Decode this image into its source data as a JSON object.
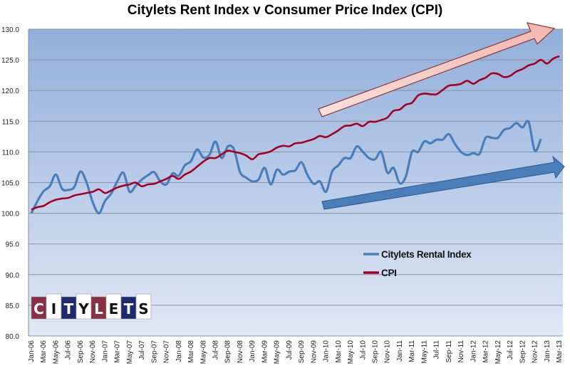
{
  "chart_data": {
    "type": "line",
    "title": "Citylets Rent Index v Consumer Price Index (CPI)",
    "xlabel": "",
    "ylabel": "",
    "ylim": [
      80,
      130
    ],
    "yticks": [
      "80.0",
      "85.0",
      "90.0",
      "95.0",
      "100.0",
      "105.0",
      "110.0",
      "115.0",
      "120.0",
      "125.0",
      "130.0"
    ],
    "grid": true,
    "legend_position": "center-right",
    "x_tick_labels": [
      "Jan-06",
      "Mar-06",
      "May-06",
      "Jul-06",
      "Sep-06",
      "Nov-06",
      "Jan-07",
      "Mar-07",
      "May-07",
      "Jul-07",
      "Sep-07",
      "Nov-07",
      "Jan-08",
      "Mar-08",
      "May-08",
      "Jul-08",
      "Sep-08",
      "Nov-08",
      "Jan-09",
      "Mar-09",
      "May-09",
      "Jul-09",
      "Sep-09",
      "Nov-09",
      "Jan-10",
      "Mar-10",
      "May-10",
      "Jul-10",
      "Sep-10",
      "Nov-10",
      "Jan-11",
      "Mar-11",
      "May-11",
      "Jul-11",
      "Sep-11",
      "Nov-11",
      "Jan-12",
      "Mar-12",
      "May-12",
      "Jul-12",
      "Sep-12",
      "Nov-12",
      "Jan-13",
      "Mar-13"
    ],
    "x_months": 87,
    "series": [
      {
        "name": "Citylets Rental Index",
        "color": "#4a7ebb",
        "values": [
          100.0,
          102.0,
          103.6,
          104.4,
          106.3,
          104.0,
          103.8,
          104.3,
          106.8,
          105.0,
          101.8,
          100.0,
          102.0,
          103.2,
          105.2,
          106.6,
          103.5,
          104.5,
          105.5,
          106.2,
          106.7,
          105.2,
          104.7,
          106.5,
          106.1,
          107.8,
          108.5,
          110.4,
          109.1,
          109.5,
          111.7,
          109.0,
          110.9,
          110.4,
          106.7,
          105.8,
          105.2,
          105.5,
          107.4,
          104.7,
          107.1,
          106.3,
          106.8,
          107.0,
          108.3,
          106.2,
          104.8,
          105.2,
          103.5,
          106.8,
          107.8,
          109.0,
          109.0,
          110.9,
          110.0,
          109.0,
          108.8,
          110.0,
          106.6,
          107.4,
          104.9,
          106.0,
          110.0,
          110.0,
          111.7,
          111.4,
          112.0,
          112.0,
          112.9,
          111.3,
          110.0,
          109.5,
          109.8,
          109.7,
          112.3,
          112.3,
          112.3,
          113.6,
          113.9,
          114.7,
          114.0,
          114.9,
          110.2,
          112.1
        ]
      },
      {
        "name": "CPI",
        "color": "#a50021",
        "values": [
          100.6,
          101.0,
          101.2,
          101.8,
          102.2,
          102.4,
          102.5,
          102.9,
          103.1,
          103.3,
          103.5,
          103.9,
          103.3,
          103.7,
          104.2,
          104.5,
          104.7,
          105.0,
          104.4,
          104.7,
          104.8,
          105.2,
          105.6,
          106.1,
          105.6,
          106.3,
          106.8,
          107.6,
          108.4,
          109.0,
          109.0,
          109.6,
          110.2,
          110.0,
          109.8,
          109.4,
          108.8,
          109.6,
          109.8,
          110.1,
          110.7,
          111.0,
          110.9,
          111.4,
          111.5,
          111.8,
          112.1,
          112.6,
          112.4,
          112.9,
          113.5,
          114.2,
          114.3,
          114.6,
          114.2,
          114.9,
          114.9,
          115.2,
          115.6,
          116.7,
          116.9,
          117.7,
          118.0,
          119.2,
          119.5,
          119.4,
          119.4,
          120.1,
          120.8,
          120.9,
          121.1,
          121.6,
          121.1,
          121.7,
          122.1,
          122.8,
          122.7,
          122.2,
          122.4,
          123.1,
          123.5,
          124.1,
          124.4,
          125.0,
          124.4,
          125.2,
          125.6
        ]
      }
    ],
    "annotations": [
      {
        "type": "trend-arrow",
        "color": "#f4c7c3",
        "meaning": "CPI upward trend"
      },
      {
        "type": "trend-arrow",
        "color": "#4a7ebb",
        "meaning": "Rental index upward trend"
      }
    ]
  },
  "logo": {
    "letters": [
      "C",
      "I",
      "T",
      "Y",
      "L",
      "E",
      "T",
      "S"
    ]
  }
}
